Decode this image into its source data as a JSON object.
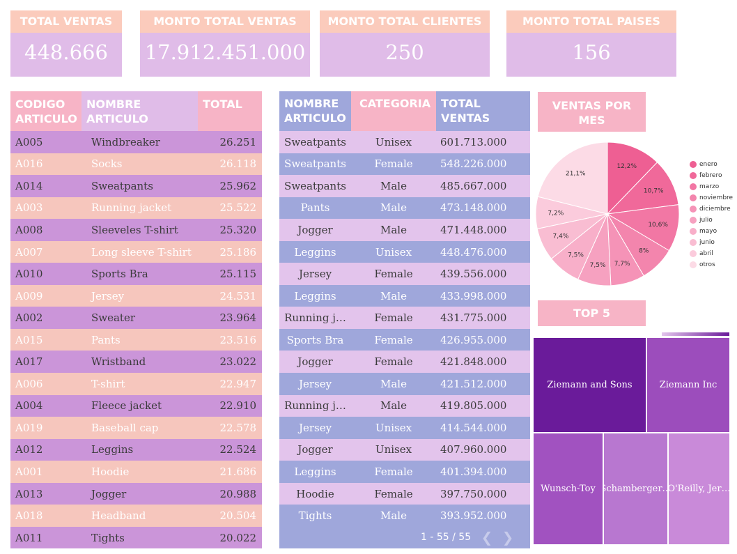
{
  "kpis": [
    {
      "label": "TOTAL VENTAS",
      "value": "448.666"
    },
    {
      "label": "MONTO TOTAL VENTAS",
      "value": "17.912.451.000"
    },
    {
      "label": "MONTO TOTAL CLIENTES",
      "value": "250"
    },
    {
      "label": "MONTO TOTAL PAISES",
      "value": "156"
    }
  ],
  "articles_table": {
    "headers": {
      "code": "CODIGO ARTICULO",
      "name": "NOMBRE ARTICULO",
      "total": "TOTAL"
    },
    "rows": [
      {
        "code": "A005",
        "name": "Windbreaker",
        "total": "26.251"
      },
      {
        "code": "A016",
        "name": "Socks",
        "total": "26.118"
      },
      {
        "code": "A014",
        "name": "Sweatpants",
        "total": "25.962"
      },
      {
        "code": "A003",
        "name": "Running jacket",
        "total": "25.522"
      },
      {
        "code": "A008",
        "name": "Sleeveles T-shirt",
        "total": "25.320"
      },
      {
        "code": "A007",
        "name": "Long sleeve T-shirt",
        "total": "25.186"
      },
      {
        "code": "A010",
        "name": "Sports Bra",
        "total": "25.115"
      },
      {
        "code": "A009",
        "name": "Jersey",
        "total": "24.531"
      },
      {
        "code": "A002",
        "name": "Sweater",
        "total": "23.964"
      },
      {
        "code": "A015",
        "name": "Pants",
        "total": "23.516"
      },
      {
        "code": "A017",
        "name": "Wristband",
        "total": "23.022"
      },
      {
        "code": "A006",
        "name": "T-shirt",
        "total": "22.947"
      },
      {
        "code": "A004",
        "name": "Fleece jacket",
        "total": "22.910"
      },
      {
        "code": "A019",
        "name": "Baseball cap",
        "total": "22.578"
      },
      {
        "code": "A012",
        "name": "Leggins",
        "total": "22.524"
      },
      {
        "code": "A001",
        "name": "Hoodie",
        "total": "21.686"
      },
      {
        "code": "A013",
        "name": "Jogger",
        "total": "20.988"
      },
      {
        "code": "A018",
        "name": "Headband",
        "total": "20.504"
      },
      {
        "code": "A011",
        "name": "Tights",
        "total": "20.022"
      }
    ]
  },
  "category_table": {
    "headers": {
      "name": "NOMBRE ARTICULO",
      "category": "CATEGORIA",
      "total": "TOTAL VENTAS"
    },
    "rows": [
      {
        "name": "Sweatpants",
        "category": "Unisex",
        "total": "601.713.000"
      },
      {
        "name": "Sweatpants",
        "category": "Female",
        "total": "548.226.000"
      },
      {
        "name": "Sweatpants",
        "category": "Male",
        "total": "485.667.000"
      },
      {
        "name": "Pants",
        "category": "Male",
        "total": "473.148.000"
      },
      {
        "name": "Jogger",
        "category": "Male",
        "total": "471.448.000"
      },
      {
        "name": "Leggins",
        "category": "Unisex",
        "total": "448.476.000"
      },
      {
        "name": "Jersey",
        "category": "Female",
        "total": "439.556.000"
      },
      {
        "name": "Leggins",
        "category": "Male",
        "total": "433.998.000"
      },
      {
        "name": "Running j…",
        "category": "Female",
        "total": "431.775.000"
      },
      {
        "name": "Sports Bra",
        "category": "Female",
        "total": "426.955.000"
      },
      {
        "name": "Jogger",
        "category": "Female",
        "total": "421.848.000"
      },
      {
        "name": "Jersey",
        "category": "Male",
        "total": "421.512.000"
      },
      {
        "name": "Running j…",
        "category": "Male",
        "total": "419.805.000"
      },
      {
        "name": "Jersey",
        "category": "Unisex",
        "total": "414.544.000"
      },
      {
        "name": "Jogger",
        "category": "Unisex",
        "total": "407.960.000"
      },
      {
        "name": "Leggins",
        "category": "Female",
        "total": "401.394.000"
      },
      {
        "name": "Hoodie",
        "category": "Female",
        "total": "397.750.000"
      },
      {
        "name": "Tights",
        "category": "Male",
        "total": "393.952.000"
      }
    ],
    "pagination": "1 - 55 / 55",
    "prev_icon": "chevron-left-icon",
    "next_icon": "chevron-right-icon"
  },
  "pie_title": "VENTAS POR MES",
  "top5_title": "TOP 5",
  "chart_data": {
    "type": "pie",
    "slices": [
      {
        "label": "enero",
        "value": 12.2,
        "display": "12,2%",
        "color": "#ee5f93"
      },
      {
        "label": "febrero",
        "value": 10.7,
        "display": "10,7%",
        "color": "#f0699a"
      },
      {
        "label": "marzo",
        "value": 10.6,
        "display": "10,6%",
        "color": "#f277a4"
      },
      {
        "label": "noviembre",
        "value": 8.0,
        "display": "8%",
        "color": "#f385ad"
      },
      {
        "label": "diciembre",
        "value": 7.7,
        "display": "7,7%",
        "color": "#f593b7"
      },
      {
        "label": "julio",
        "value": 7.5,
        "display": "7,5%",
        "color": "#f6a1c0"
      },
      {
        "label": "mayo",
        "value": 7.5,
        "display": "7,5%",
        "color": "#f8afc9"
      },
      {
        "label": "junio",
        "value": 7.4,
        "display": "7,4%",
        "color": "#f9bdd2"
      },
      {
        "label": "abril",
        "value": 7.2,
        "display": "7,2%",
        "color": "#fbcbdc"
      },
      {
        "label": "otros",
        "value": 21.1,
        "display": "21,1%",
        "color": "#fcdbe6"
      }
    ]
  },
  "treemap": [
    {
      "label": "Ziemann and Sons",
      "color": "#6a1b9a"
    },
    {
      "label": "Ziemann Inc",
      "color": "#9c4dbc"
    },
    {
      "label": "Wunsch-Toy",
      "color": "#a152c0"
    },
    {
      "label": "Schamberger…",
      "color": "#b877d0"
    },
    {
      "label": "O'Reilly, Jer…",
      "color": "#c98ad9"
    }
  ]
}
